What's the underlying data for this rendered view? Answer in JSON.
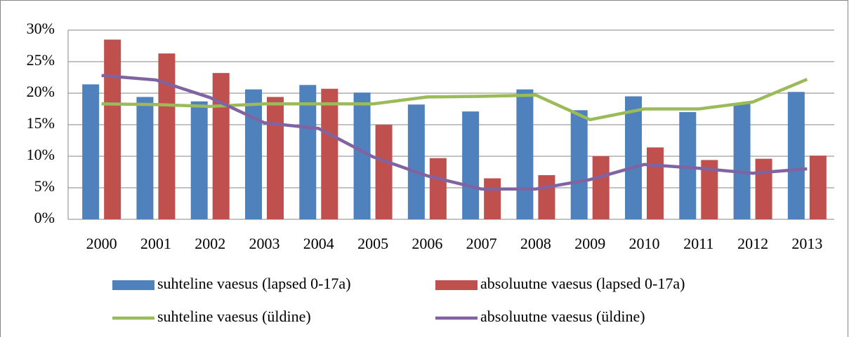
{
  "chart_data": {
    "type": "bar",
    "categories": [
      "2000",
      "2001",
      "2002",
      "2003",
      "2004",
      "2005",
      "2006",
      "2007",
      "2008",
      "2009",
      "2010",
      "2011",
      "2012",
      "2013"
    ],
    "series": [
      {
        "name": "suhteline vaesus (lapsed 0-17a)",
        "type": "bar",
        "color": "#4f81bd",
        "values": [
          21.4,
          19.4,
          18.7,
          20.6,
          21.3,
          20.1,
          18.2,
          17.1,
          20.6,
          17.3,
          19.5,
          17.0,
          18.3,
          20.2
        ]
      },
      {
        "name": "absoluutne vaesus (lapsed 0-17a)",
        "type": "bar",
        "color": "#c0504d",
        "values": [
          28.5,
          26.3,
          23.2,
          19.4,
          20.7,
          15.0,
          9.7,
          6.5,
          7.0,
          10.0,
          11.4,
          9.4,
          9.6,
          10.1
        ]
      },
      {
        "name": "suhteline vaesus (üldine)",
        "type": "line",
        "color": "#9bbb59",
        "values": [
          18.3,
          18.2,
          17.9,
          18.3,
          18.3,
          18.3,
          19.4,
          19.5,
          19.7,
          15.8,
          17.5,
          17.5,
          18.6,
          22.2
        ]
      },
      {
        "name": "absoluutne vaesus (üldine)",
        "type": "line",
        "color": "#8064a2",
        "values": [
          22.8,
          22.1,
          19.3,
          15.3,
          14.4,
          9.9,
          6.9,
          4.8,
          4.8,
          6.3,
          8.7,
          8.1,
          7.3,
          8.0
        ]
      }
    ],
    "ylim": [
      0,
      30
    ],
    "yticks": [
      {
        "value": 0,
        "label": "0%"
      },
      {
        "value": 5,
        "label": "5%"
      },
      {
        "value": 10,
        "label": "10%"
      },
      {
        "value": 15,
        "label": "15%"
      },
      {
        "value": 20,
        "label": "20%"
      },
      {
        "value": 25,
        "label": "25%"
      },
      {
        "value": 30,
        "label": "30%"
      }
    ],
    "grid": true,
    "legend": "bottom"
  }
}
